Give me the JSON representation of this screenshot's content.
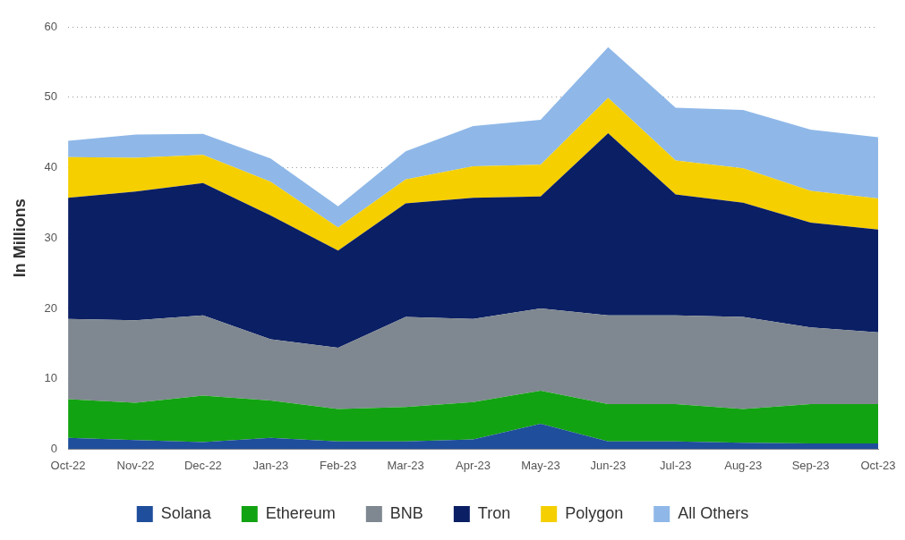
{
  "chart_data": {
    "type": "area",
    "y_label": "In Millions",
    "categories": [
      "Oct-22",
      "Nov-22",
      "Dec-22",
      "Jan-23",
      "Feb-23",
      "Mar-23",
      "Apr-23",
      "May-23",
      "Jun-23",
      "Jul-23",
      "Aug-23",
      "Sep-23",
      "Oct-23"
    ],
    "series": [
      {
        "name": "Solana",
        "color": "#1f4e9c",
        "values": [
          1.6,
          1.3,
          1.0,
          1.6,
          1.1,
          1.1,
          1.4,
          3.6,
          1.1,
          1.1,
          0.9,
          0.8,
          0.8
        ]
      },
      {
        "name": "Ethereum",
        "color": "#12a312",
        "values": [
          5.5,
          5.3,
          6.6,
          5.3,
          4.6,
          4.9,
          5.3,
          4.7,
          5.3,
          5.3,
          4.8,
          5.6,
          5.6
        ]
      },
      {
        "name": "BNB",
        "color": "#7f8890",
        "values": [
          11.4,
          11.7,
          11.4,
          8.7,
          8.7,
          12.8,
          11.8,
          11.7,
          12.6,
          12.6,
          13.1,
          10.9,
          10.2
        ]
      },
      {
        "name": "Tron",
        "color": "#0b1f64",
        "values": [
          17.2,
          18.3,
          18.8,
          17.6,
          13.8,
          16.1,
          17.2,
          15.9,
          25.9,
          17.2,
          16.2,
          14.9,
          14.6
        ]
      },
      {
        "name": "Polygon",
        "color": "#f5cf00",
        "values": [
          5.8,
          4.8,
          4.0,
          4.8,
          3.3,
          3.4,
          4.5,
          4.5,
          5.0,
          4.8,
          4.9,
          4.5,
          4.4
        ]
      },
      {
        "name": "All Others",
        "color": "#8fb8e8",
        "values": [
          2.3,
          3.3,
          3.0,
          3.3,
          3.0,
          4.0,
          5.7,
          6.4,
          7.2,
          7.5,
          8.3,
          8.7,
          8.7
        ]
      }
    ],
    "ylim": [
      0,
      60
    ],
    "yticks": [
      0,
      10,
      20,
      30,
      40,
      50,
      60
    ],
    "stacked": true,
    "grid": true,
    "legend": "bottom"
  }
}
